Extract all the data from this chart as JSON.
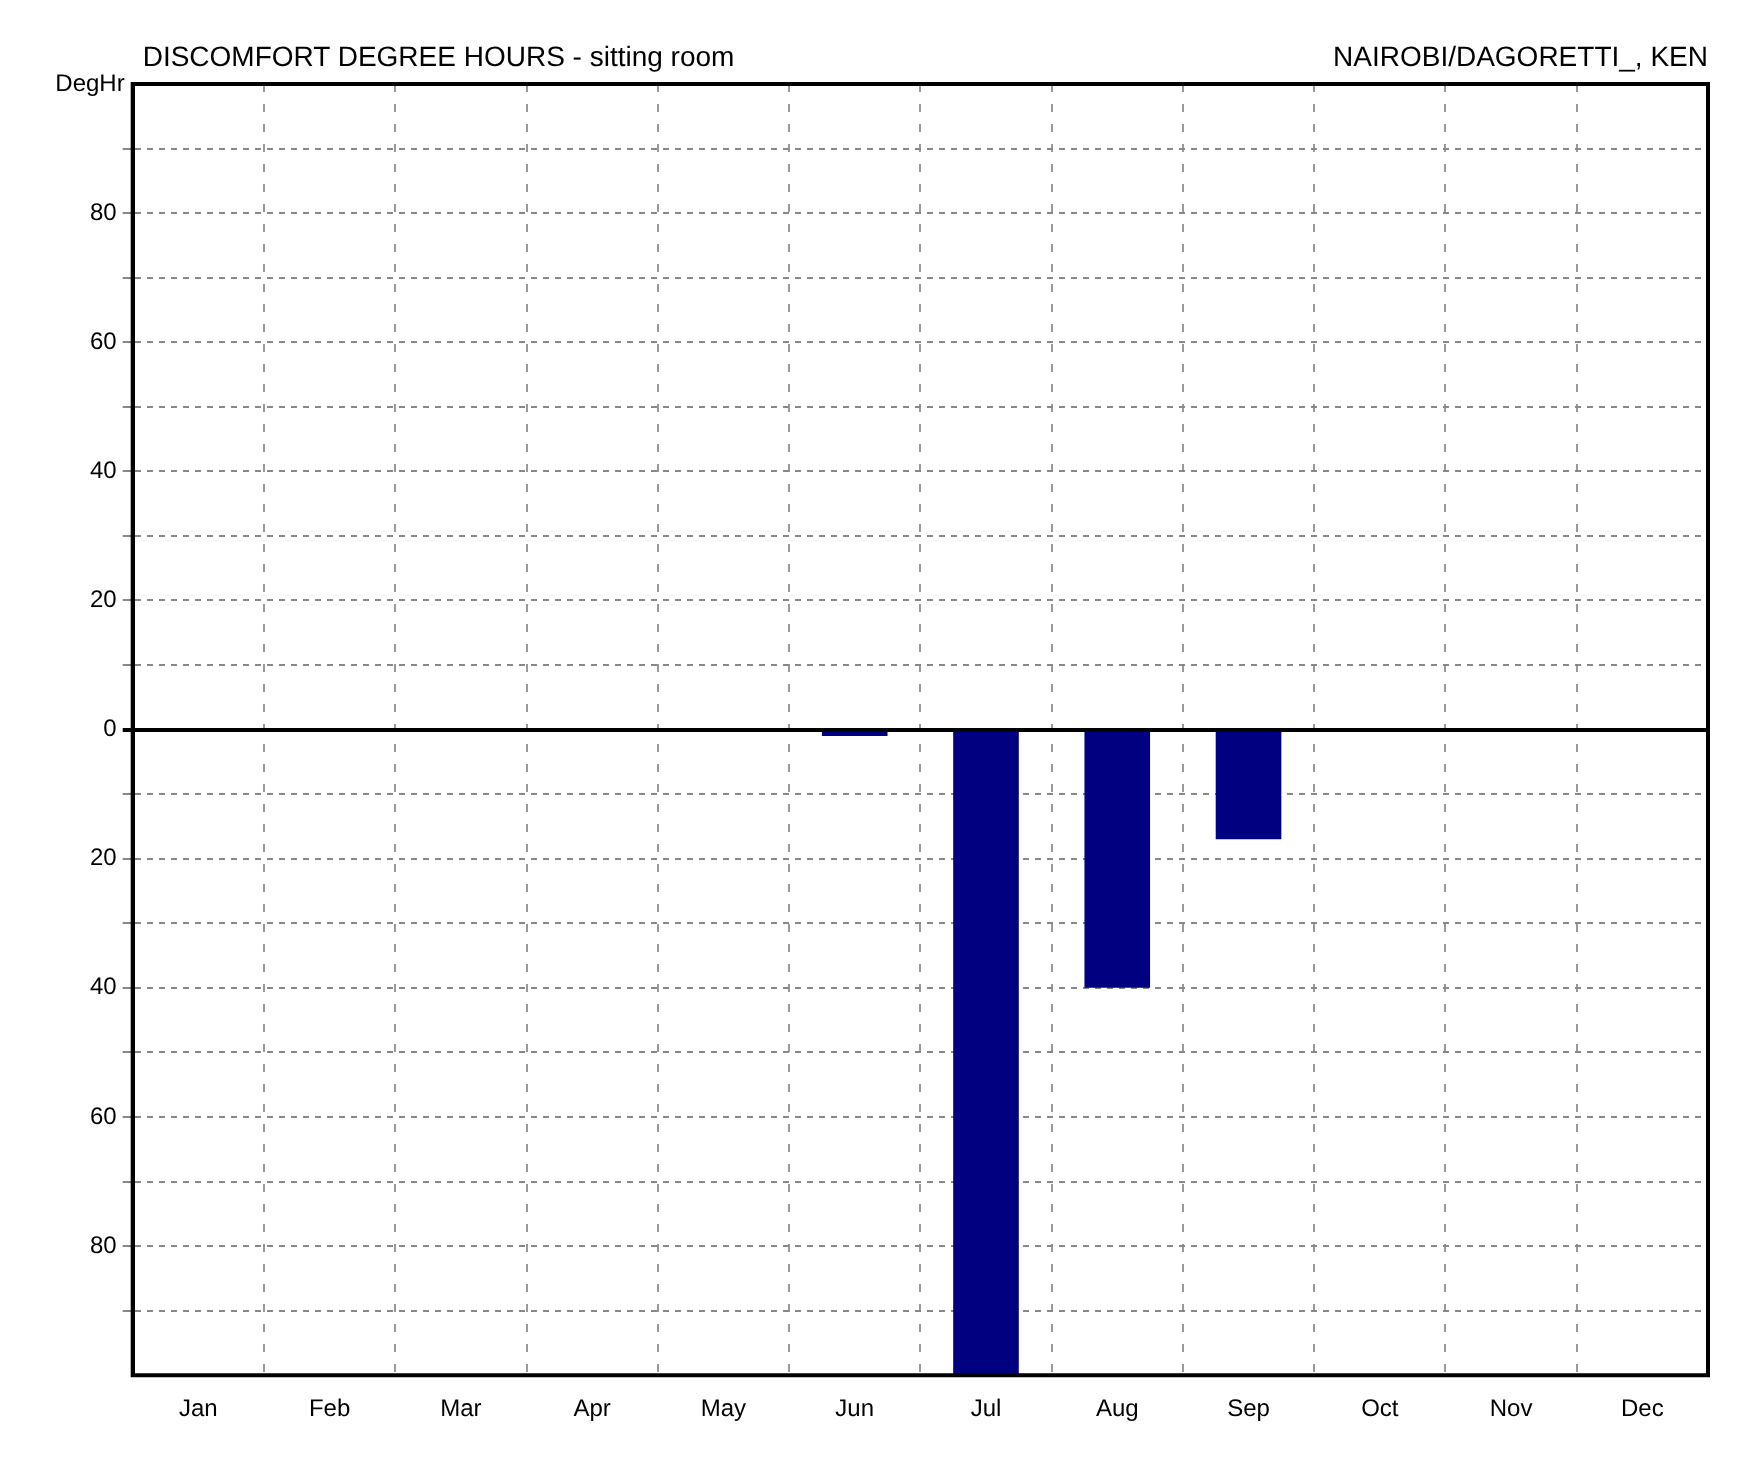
{
  "chart_data": {
    "type": "bar",
    "title": "DISCOMFORT DEGREE HOURS - sitting room",
    "subtitle": "NAIROBI/DAGORETTI_, KEN",
    "ylabel": "DegHr",
    "categories": [
      "Jan",
      "Feb",
      "Mar",
      "Apr",
      "May",
      "Jun",
      "Jul",
      "Aug",
      "Sep",
      "Oct",
      "Nov",
      "Dec"
    ],
    "values": [
      0,
      0,
      0,
      0,
      0,
      -1,
      -100,
      -40,
      -17,
      0,
      0,
      0
    ],
    "color": "#000080",
    "ylim": [
      -100,
      100
    ],
    "yticks": [
      {
        "value": -90,
        "label": null
      },
      {
        "value": -80,
        "label": "80"
      },
      {
        "value": -70,
        "label": null
      },
      {
        "value": -60,
        "label": "60"
      },
      {
        "value": -50,
        "label": null
      },
      {
        "value": -40,
        "label": "40"
      },
      {
        "value": -30,
        "label": null
      },
      {
        "value": -20,
        "label": "20"
      },
      {
        "value": -10,
        "label": null
      },
      0,
      {
        "value": 10,
        "label": null
      },
      20,
      {
        "value": 30,
        "label": null
      },
      40,
      {
        "value": 50,
        "label": null
      },
      60,
      {
        "value": 70,
        "label": null
      },
      80,
      {
        "value": 90,
        "label": null
      }
    ],
    "grid": true,
    "legend": false
  }
}
